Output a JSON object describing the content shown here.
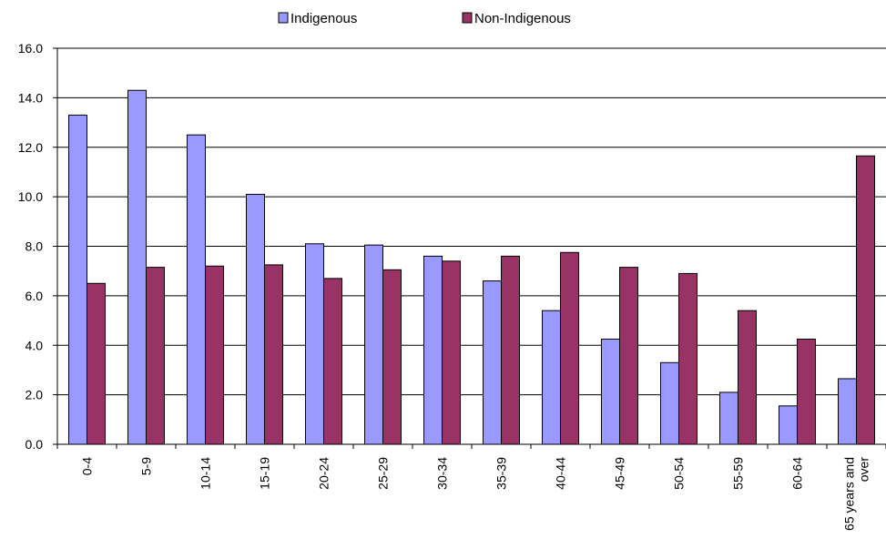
{
  "chart_data": {
    "type": "bar",
    "categories": [
      "0-4",
      "5-9",
      "10-14",
      "15-19",
      "20-24",
      "25-29",
      "30-34",
      "35-39",
      "40-44",
      "45-49",
      "50-54",
      "55-59",
      "60-64",
      "65 years and over"
    ],
    "category_lines": [
      [
        "0-4"
      ],
      [
        "5-9"
      ],
      [
        "10-14"
      ],
      [
        "15-19"
      ],
      [
        "20-24"
      ],
      [
        "25-29"
      ],
      [
        "30-34"
      ],
      [
        "35-39"
      ],
      [
        "40-44"
      ],
      [
        "45-49"
      ],
      [
        "50-54"
      ],
      [
        "55-59"
      ],
      [
        "60-64"
      ],
      [
        "65 years and",
        "over"
      ]
    ],
    "series": [
      {
        "name": "Indigenous",
        "color": "#9999ff",
        "values": [
          13.3,
          14.3,
          12.5,
          10.1,
          8.1,
          8.05,
          7.6,
          6.6,
          5.4,
          4.25,
          3.3,
          2.1,
          1.55,
          2.65
        ]
      },
      {
        "name": "Non-Indigenous",
        "color": "#993366",
        "values": [
          6.5,
          7.15,
          7.2,
          7.25,
          6.7,
          7.05,
          7.4,
          7.6,
          7.75,
          7.15,
          6.9,
          5.4,
          4.25,
          11.65
        ]
      }
    ],
    "ylim": [
      0,
      16
    ],
    "yticks": [
      "0.0",
      "2.0",
      "4.0",
      "6.0",
      "8.0",
      "10.0",
      "12.0",
      "14.0",
      "16.0"
    ],
    "grid": true,
    "legend_position": "top-center"
  }
}
